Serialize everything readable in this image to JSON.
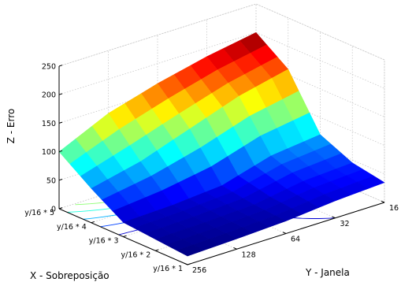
{
  "chart_data": {
    "type": "surface",
    "zlabel": "Z - Erro",
    "xlabel": "X - Sobreposição",
    "ylabel": "Y - Janela",
    "x_ticks": [
      "y/16 * 1",
      "y/16 * 2",
      "y/16 * 3",
      "y/16 * 4",
      "y/16 * 5"
    ],
    "y_ticks": [
      "256",
      "128",
      "64",
      "32",
      "16"
    ],
    "z_ticks": [
      "0",
      "50",
      "100",
      "150",
      "200",
      "250"
    ],
    "zlim": [
      0,
      250
    ],
    "grid": true,
    "colormap": "jet",
    "contour_projection": true,
    "surface": {
      "x": [
        1,
        2,
        3,
        4,
        5
      ],
      "y": [
        256,
        128,
        64,
        32,
        16
      ],
      "z": [
        [
          15,
          18,
          22,
          30,
          35
        ],
        [
          20,
          22,
          26,
          40,
          45
        ],
        [
          25,
          28,
          35,
          60,
          70
        ],
        [
          60,
          80,
          110,
          140,
          160
        ],
        [
          100,
          140,
          165,
          185,
          200
        ]
      ]
    }
  }
}
